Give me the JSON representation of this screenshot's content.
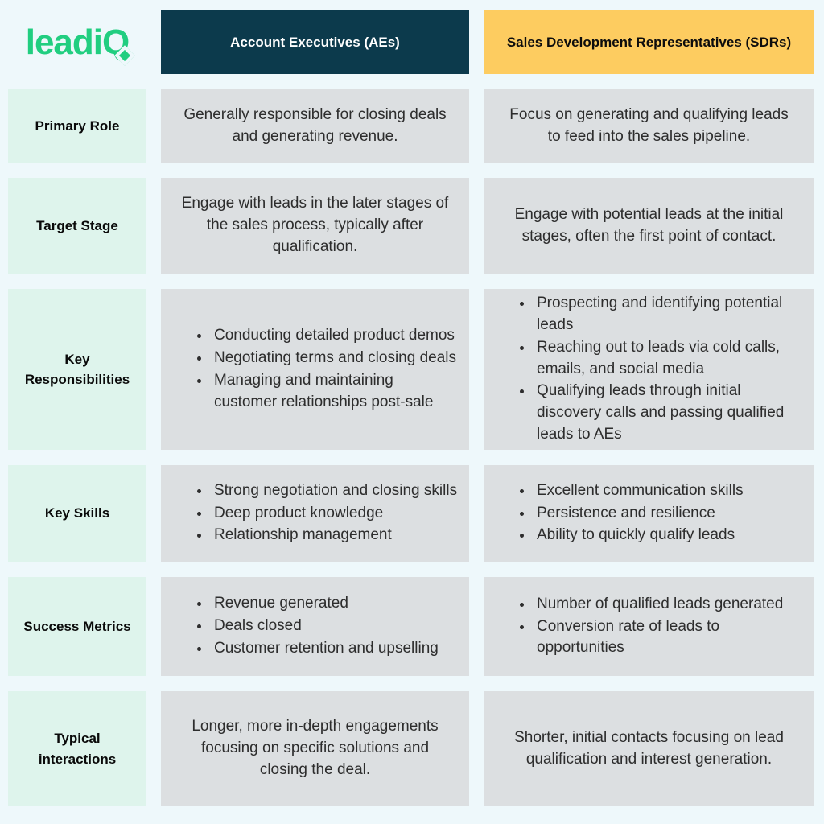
{
  "logo": {
    "text_leadi": "leadi",
    "text_q": "Q",
    "brand_color": "#21ce80"
  },
  "columns": [
    {
      "label": "Account Executives (AEs)",
      "bg": "#0c3a4c",
      "text_color": "#ffffff"
    },
    {
      "label": "Sales Development Representatives (SDRs)",
      "bg": "#fdcc60",
      "text_color": "#0d0d0d"
    }
  ],
  "rows": [
    {
      "label": "Primary Role",
      "ae": {
        "type": "text",
        "text": "Generally responsible for closing deals and generating revenue."
      },
      "sdr": {
        "type": "text",
        "text": "Focus on generating and qualifying leads to feed into the sales pipeline."
      }
    },
    {
      "label": "Target Stage",
      "ae": {
        "type": "text",
        "text": "Engage with leads in the later stages of the sales process, typically after qualification."
      },
      "sdr": {
        "type": "text",
        "text": "Engage with potential leads at the initial stages, often the first point of contact."
      }
    },
    {
      "label": "Key Responsibilities",
      "ae": {
        "type": "bullets",
        "items": [
          "Conducting detailed product demos",
          "Negotiating terms and closing deals",
          "Managing and maintaining customer relationships post-sale"
        ]
      },
      "sdr": {
        "type": "bullets",
        "items": [
          "Prospecting and identifying potential leads",
          "Reaching out to leads via cold calls, emails, and social media",
          "Qualifying leads through initial discovery calls and passing qualified leads to AEs"
        ]
      }
    },
    {
      "label": "Key Skills",
      "ae": {
        "type": "bullets",
        "items": [
          "Strong negotiation and closing skills",
          "Deep product knowledge",
          "Relationship management"
        ]
      },
      "sdr": {
        "type": "bullets",
        "items": [
          "Excellent communication skills",
          "Persistence and resilience",
          "Ability to quickly qualify leads"
        ]
      }
    },
    {
      "label": "Success Metrics",
      "ae": {
        "type": "bullets",
        "items": [
          "Revenue generated",
          "Deals closed",
          "Customer retention and upselling"
        ]
      },
      "sdr": {
        "type": "bullets",
        "items": [
          "Number of qualified leads generated",
          "Conversion rate of leads to opportunities"
        ]
      }
    },
    {
      "label": "Typical interactions",
      "ae": {
        "type": "text",
        "text": "Longer, more in-depth engagements focusing on specific solutions and closing the deal."
      },
      "sdr": {
        "type": "text",
        "text": "Shorter, initial contacts focusing on lead qualification and interest generation."
      }
    }
  ],
  "colors": {
    "page_background": "#eef8fb",
    "header_ae_bg": "#0c3a4c",
    "header_sdr_bg": "#fdcc60",
    "label_cell_bg": "#def4ec",
    "content_cell_bg": "#dcdfe1",
    "brand_green": "#21ce80"
  }
}
